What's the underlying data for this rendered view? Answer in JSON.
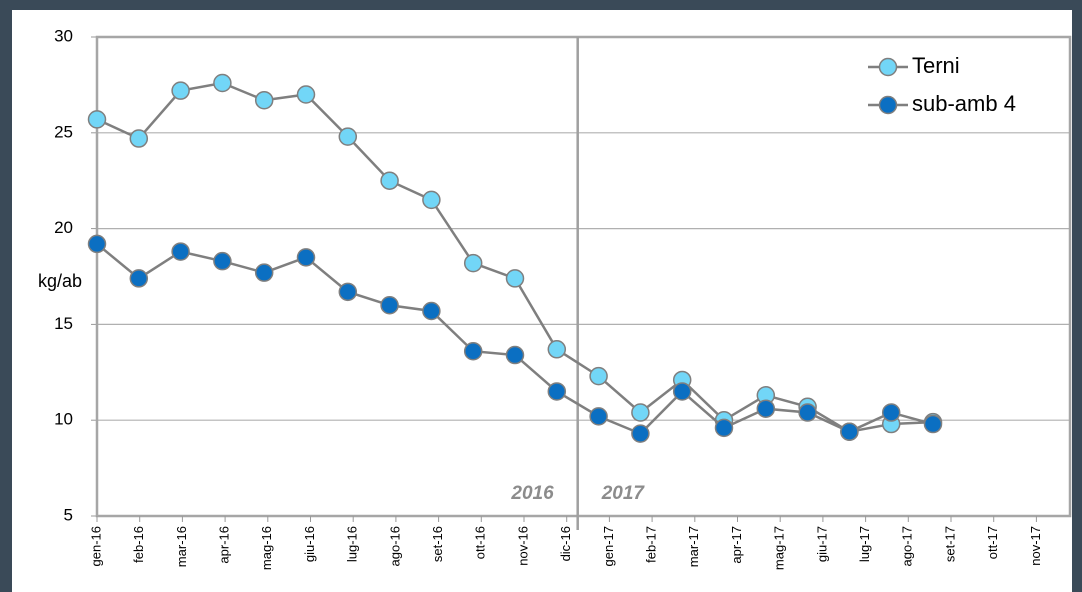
{
  "chart_data": {
    "type": "line",
    "y_label": "kg/ab",
    "categories": [
      "gen-16",
      "feb-16",
      "mar-16",
      "apr-16",
      "mag-16",
      "giu-16",
      "lug-16",
      "ago-16",
      "set-16",
      "ott-16",
      "nov-16",
      "dic-16",
      "gen-17",
      "feb-17",
      "mar-17",
      "apr-17",
      "mag-17",
      "giu-17",
      "lug-17",
      "ago-17",
      "set-17",
      "ott-17",
      "nov-17"
    ],
    "series": [
      {
        "name": "Terni",
        "color": "#72d6f7",
        "values": [
          25.7,
          24.7,
          27.2,
          27.6,
          26.7,
          27.0,
          24.8,
          22.5,
          21.5,
          18.2,
          17.4,
          13.7,
          12.3,
          10.4,
          12.1,
          10.0,
          11.3,
          10.7,
          9.4,
          9.8,
          9.9,
          null,
          null
        ]
      },
      {
        "name": "sub-amb 4",
        "color": "#0b6fc2",
        "values": [
          19.2,
          17.4,
          18.8,
          18.3,
          17.7,
          18.5,
          16.7,
          16.0,
          15.7,
          13.6,
          13.4,
          11.5,
          10.2,
          9.3,
          11.5,
          9.6,
          10.6,
          10.4,
          9.4,
          10.4,
          9.8,
          null,
          null
        ]
      }
    ],
    "annotations": [
      "2016",
      "2017"
    ],
    "ylim": [
      5,
      30
    ],
    "yticks": [
      5,
      10,
      15,
      20,
      25,
      30
    ],
    "grid": true,
    "legend": "top-right"
  }
}
